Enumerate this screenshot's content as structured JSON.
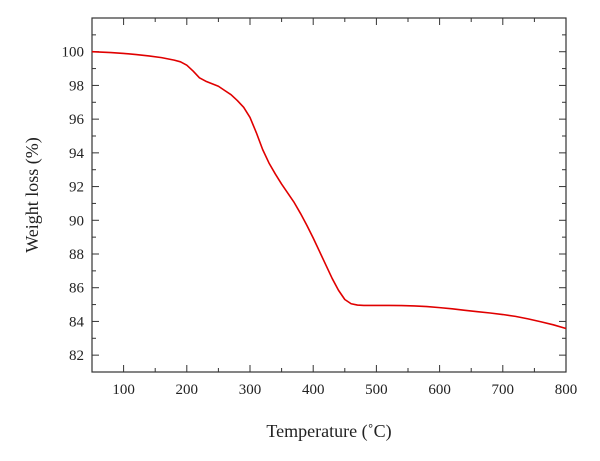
{
  "chart_data": {
    "type": "line",
    "xlabel": "Temperature (˚C)",
    "ylabel": "Weight loss (%)",
    "xlim": [
      50,
      800
    ],
    "ylim": [
      81,
      102
    ],
    "xticks": [
      100,
      200,
      300,
      400,
      500,
      600,
      700,
      800
    ],
    "yticks": [
      82,
      84,
      86,
      88,
      90,
      92,
      94,
      96,
      98,
      100
    ],
    "grid": false,
    "series": [
      {
        "color": "#e00000",
        "x": [
          50,
          80,
          100,
          120,
          140,
          160,
          180,
          190,
          200,
          210,
          220,
          230,
          240,
          250,
          260,
          270,
          280,
          290,
          300,
          310,
          320,
          330,
          340,
          350,
          360,
          370,
          380,
          390,
          400,
          410,
          420,
          430,
          440,
          450,
          460,
          470,
          480,
          490,
          500,
          520,
          540,
          560,
          580,
          600,
          620,
          640,
          660,
          680,
          700,
          720,
          740,
          760,
          780,
          800
        ],
        "y": [
          100.0,
          99.95,
          99.9,
          99.83,
          99.75,
          99.65,
          99.5,
          99.4,
          99.2,
          98.85,
          98.45,
          98.25,
          98.1,
          97.95,
          97.7,
          97.45,
          97.1,
          96.7,
          96.1,
          95.2,
          94.2,
          93.4,
          92.75,
          92.15,
          91.6,
          91.05,
          90.4,
          89.7,
          88.95,
          88.15,
          87.35,
          86.55,
          85.85,
          85.3,
          85.05,
          84.97,
          84.95,
          84.95,
          84.95,
          84.95,
          84.94,
          84.92,
          84.88,
          84.82,
          84.75,
          84.66,
          84.58,
          84.5,
          84.41,
          84.3,
          84.15,
          83.98,
          83.8,
          83.58
        ]
      }
    ]
  }
}
